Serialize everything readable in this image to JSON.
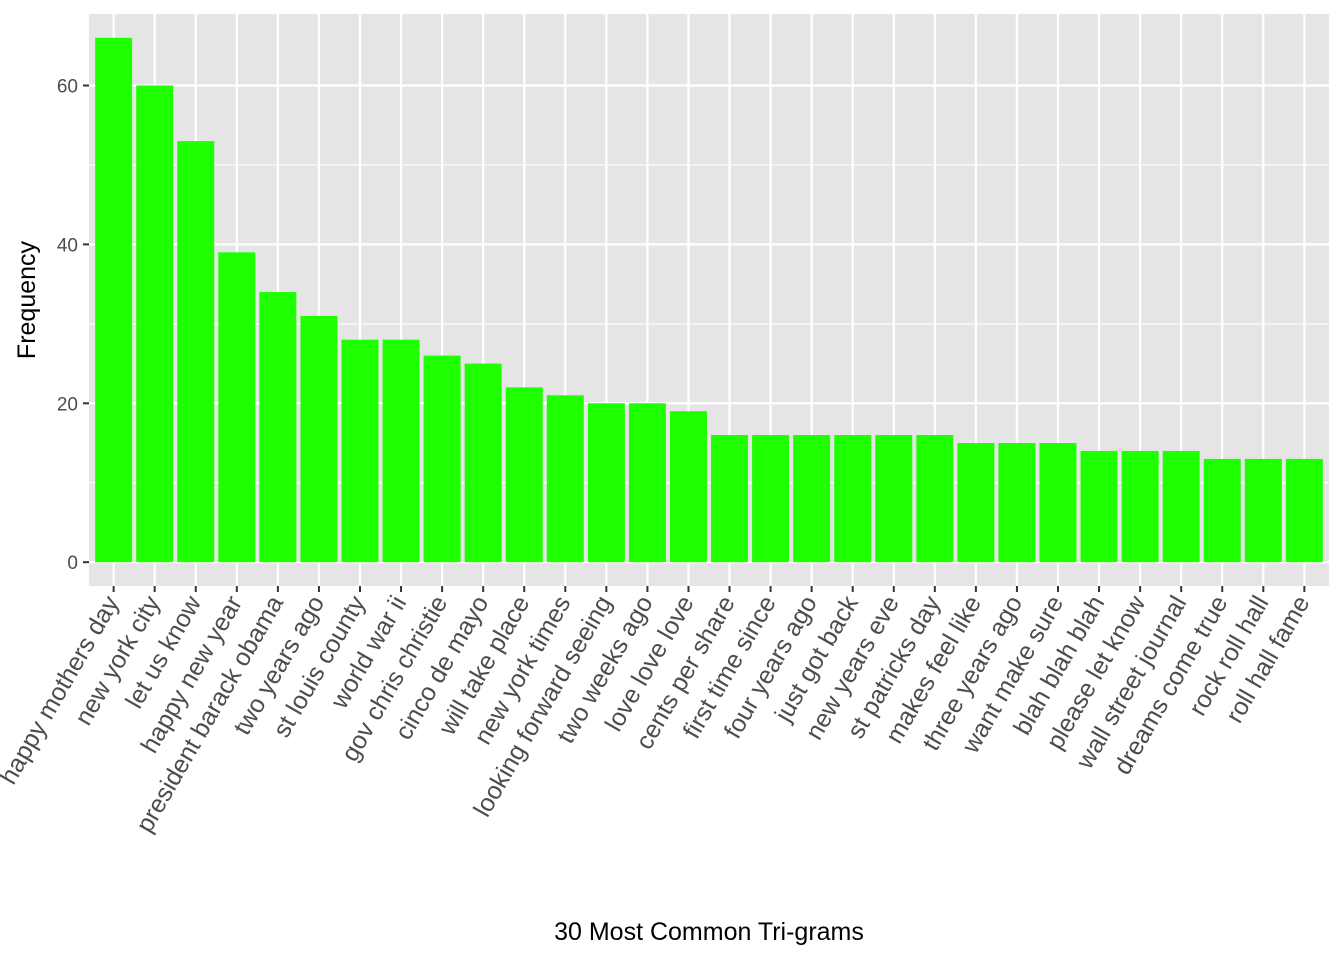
{
  "chart_data": {
    "type": "bar",
    "title": "",
    "xlabel": "30 Most Common Tri-grams",
    "ylabel": "Frequency",
    "ylim": [
      -3,
      69
    ],
    "yticks": [
      0,
      20,
      40,
      60
    ],
    "grid": true,
    "bar_color": "#1eff00",
    "panel_color": "#e5e5e5",
    "grid_color": "#ffffff",
    "categories": [
      "happy mothers day",
      "new york city",
      "let us know",
      "happy new year",
      "president barack obama",
      "two years ago",
      "st louis county",
      "world war ii",
      "gov chris christie",
      "cinco de mayo",
      "will take place",
      "new york times",
      "looking forward seeing",
      "two weeks ago",
      "love love love",
      "cents per share",
      "first time since",
      "four years ago",
      "just got back",
      "new years eve",
      "st patricks day",
      "makes feel like",
      "three years ago",
      "want make sure",
      "blah blah blah",
      "please let know",
      "wall street journal",
      "dreams come true",
      "rock roll hall",
      "roll hall fame"
    ],
    "values": [
      66,
      60,
      53,
      39,
      34,
      31,
      28,
      28,
      26,
      25,
      22,
      21,
      20,
      20,
      19,
      16,
      16,
      16,
      16,
      16,
      16,
      15,
      15,
      15,
      14,
      14,
      14,
      13,
      13,
      13
    ]
  }
}
